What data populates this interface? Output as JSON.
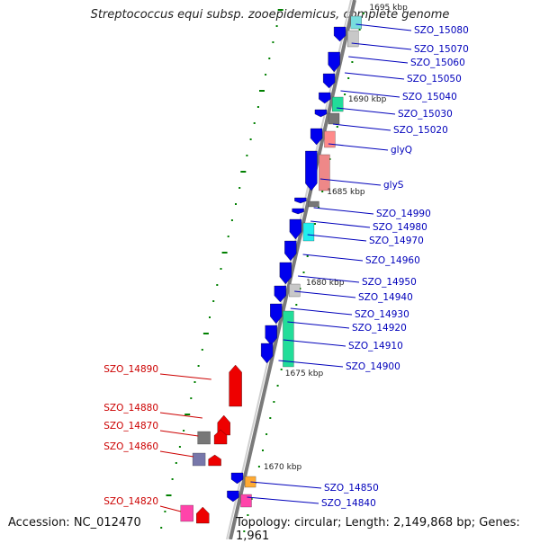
{
  "title": "Streptococcus equi subsp. zooepidemicus, complete genome",
  "accession": "Accession: NC_012470",
  "topology": "Topology: circular; Length: 2,149,868 bp; Genes: 1,961",
  "colors": {
    "forward": "#0000ee",
    "reverse": "#ee0000",
    "backbone": "#808080",
    "tick": "#008000",
    "label_forward": "#0000bb",
    "label_reverse": "#cc0000"
  },
  "kbp_labels": [
    "1695 kbp",
    "1690 kbp",
    "1685 kbp",
    "1680 kbp",
    "1675 kbp",
    "1670 kbp"
  ],
  "forward_labels": [
    "SZO_15080",
    "SZO_15070",
    "SZO_15060",
    "SZO_15050",
    "SZO_15040",
    "SZO_15030",
    "SZO_15020",
    "glyQ",
    "glyS",
    "SZO_14990",
    "SZO_14980",
    "SZO_14970",
    "SZO_14960",
    "SZO_14950",
    "SZO_14940",
    "SZO_14930",
    "SZO_14920",
    "SZO_14910",
    "SZO_14900",
    "SZO_14850",
    "SZO_14840"
  ],
  "reverse_labels": [
    "SZO_14890",
    "SZO_14880",
    "SZO_14870",
    "SZO_14860",
    "SZO_14820"
  ]
}
